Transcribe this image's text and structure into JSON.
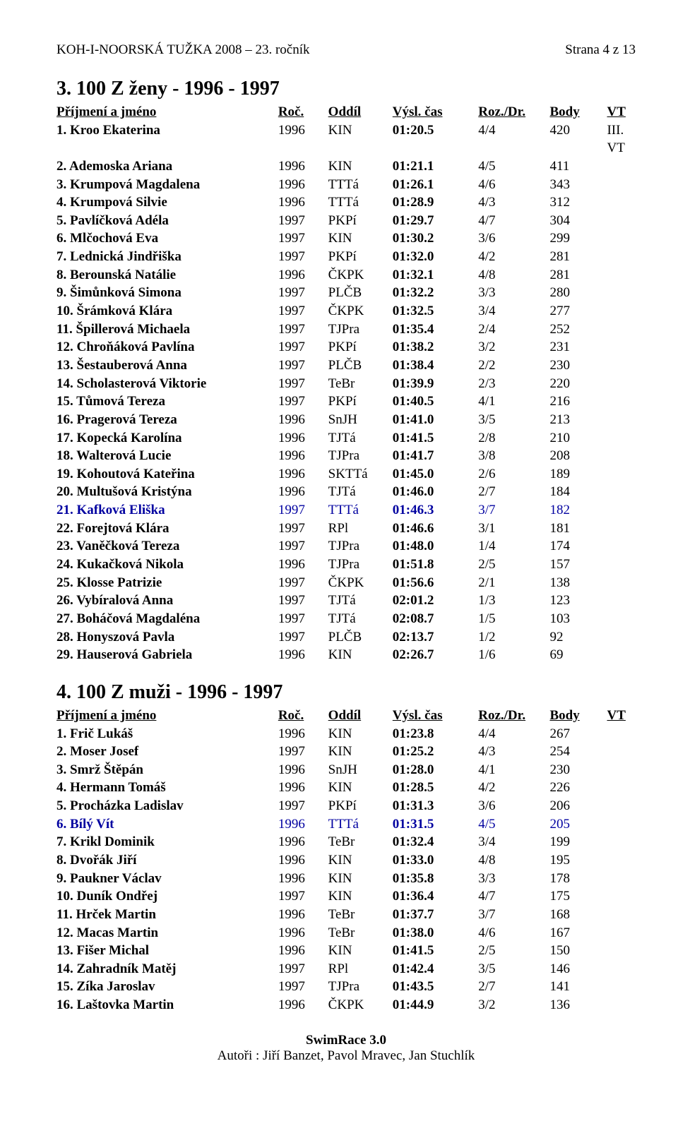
{
  "header": {
    "title_left": "KOH-I-NOORSKÁ TUŽKA 2008 – 23. ročník",
    "title_right": "Strana 4 z 13"
  },
  "s1": {
    "title": "3. 100 Z ženy - 1996 - 1997",
    "th": {
      "name": "Příjmení a jméno",
      "roc": "Roč.",
      "oddil": "Oddíl",
      "cas": "Výsl. čas",
      "roz": "Roz./Dr.",
      "body": "Body",
      "vt": "VT"
    },
    "rows": [
      {
        "hl": false,
        "name": "1. Kroo Ekaterina",
        "roc": "1996",
        "oddil": "KIN",
        "cas": "01:20.5",
        "roz": "4/4",
        "body": "420",
        "vt": "III. VT"
      },
      {
        "hl": false,
        "name": "2. Ademoska Ariana",
        "roc": "1996",
        "oddil": "KIN",
        "cas": "01:21.1",
        "roz": "4/5",
        "body": "411",
        "vt": ""
      },
      {
        "hl": false,
        "name": "3. Krumpová Magdalena",
        "roc": "1996",
        "oddil": "TTTá",
        "cas": "01:26.1",
        "roz": "4/6",
        "body": "343",
        "vt": ""
      },
      {
        "hl": false,
        "name": "4. Krumpová Silvie",
        "roc": "1996",
        "oddil": "TTTá",
        "cas": "01:28.9",
        "roz": "4/3",
        "body": "312",
        "vt": ""
      },
      {
        "hl": false,
        "name": "5. Pavlíčková Adéla",
        "roc": "1997",
        "oddil": "PKPí",
        "cas": "01:29.7",
        "roz": "4/7",
        "body": "304",
        "vt": ""
      },
      {
        "hl": false,
        "name": "6. Mlčochová Eva",
        "roc": "1997",
        "oddil": "KIN",
        "cas": "01:30.2",
        "roz": "3/6",
        "body": "299",
        "vt": ""
      },
      {
        "hl": false,
        "name": "7. Lednická Jindřiška",
        "roc": "1997",
        "oddil": "PKPí",
        "cas": "01:32.0",
        "roz": "4/2",
        "body": "281",
        "vt": ""
      },
      {
        "hl": false,
        "name": "8. Berounská Natálie",
        "roc": "1996",
        "oddil": "ČKPK",
        "cas": "01:32.1",
        "roz": "4/8",
        "body": "281",
        "vt": ""
      },
      {
        "hl": false,
        "name": "9. Šimůnková Simona",
        "roc": "1997",
        "oddil": "PLČB",
        "cas": "01:32.2",
        "roz": "3/3",
        "body": "280",
        "vt": ""
      },
      {
        "hl": false,
        "name": "10. Šrámková Klára",
        "roc": "1997",
        "oddil": "ČKPK",
        "cas": "01:32.5",
        "roz": "3/4",
        "body": "277",
        "vt": ""
      },
      {
        "hl": false,
        "name": "11. Špillerová Michaela",
        "roc": "1997",
        "oddil": "TJPra",
        "cas": "01:35.4",
        "roz": "2/4",
        "body": "252",
        "vt": ""
      },
      {
        "hl": false,
        "name": "12. Chroňáková Pavlína",
        "roc": "1997",
        "oddil": "PKPí",
        "cas": "01:38.2",
        "roz": "3/2",
        "body": "231",
        "vt": ""
      },
      {
        "hl": false,
        "name": "13. Šestauberová Anna",
        "roc": "1997",
        "oddil": "PLČB",
        "cas": "01:38.4",
        "roz": "2/2",
        "body": "230",
        "vt": ""
      },
      {
        "hl": false,
        "name": "14. Scholasterová Viktorie",
        "roc": "1997",
        "oddil": "TeBr",
        "cas": "01:39.9",
        "roz": "2/3",
        "body": "220",
        "vt": ""
      },
      {
        "hl": false,
        "name": "15. Tůmová Tereza",
        "roc": "1997",
        "oddil": "PKPí",
        "cas": "01:40.5",
        "roz": "4/1",
        "body": "216",
        "vt": ""
      },
      {
        "hl": false,
        "name": "16. Pragerová Tereza",
        "roc": "1996",
        "oddil": "SnJH",
        "cas": "01:41.0",
        "roz": "3/5",
        "body": "213",
        "vt": ""
      },
      {
        "hl": false,
        "name": "17. Kopecká Karolína",
        "roc": "1996",
        "oddil": "TJTá",
        "cas": "01:41.5",
        "roz": "2/8",
        "body": "210",
        "vt": ""
      },
      {
        "hl": false,
        "name": "18. Walterová Lucie",
        "roc": "1996",
        "oddil": "TJPra",
        "cas": "01:41.7",
        "roz": "3/8",
        "body": "208",
        "vt": ""
      },
      {
        "hl": false,
        "name": "19. Kohoutová Kateřina",
        "roc": "1996",
        "oddil": "SKTTá",
        "cas": "01:45.0",
        "roz": "2/6",
        "body": "189",
        "vt": ""
      },
      {
        "hl": false,
        "name": "20. Multušová Kristýna",
        "roc": "1996",
        "oddil": "TJTá",
        "cas": "01:46.0",
        "roz": "2/7",
        "body": "184",
        "vt": ""
      },
      {
        "hl": true,
        "name": "21. Kafková Eliška",
        "roc": "1997",
        "oddil": "TTTá",
        "cas": "01:46.3",
        "roz": "3/7",
        "body": "182",
        "vt": ""
      },
      {
        "hl": false,
        "name": "22. Forejtová Klára",
        "roc": "1997",
        "oddil": "RPl",
        "cas": "01:46.6",
        "roz": "3/1",
        "body": "181",
        "vt": ""
      },
      {
        "hl": false,
        "name": "23. Vaněčková Tereza",
        "roc": "1997",
        "oddil": "TJPra",
        "cas": "01:48.0",
        "roz": "1/4",
        "body": "174",
        "vt": ""
      },
      {
        "hl": false,
        "name": "24. Kukačková Nikola",
        "roc": "1996",
        "oddil": "TJPra",
        "cas": "01:51.8",
        "roz": "2/5",
        "body": "157",
        "vt": ""
      },
      {
        "hl": false,
        "name": "25. Klosse Patrizie",
        "roc": "1997",
        "oddil": "ČKPK",
        "cas": "01:56.6",
        "roz": "2/1",
        "body": "138",
        "vt": ""
      },
      {
        "hl": false,
        "name": "26. Vybíralová Anna",
        "roc": "1997",
        "oddil": "TJTá",
        "cas": "02:01.2",
        "roz": "1/3",
        "body": "123",
        "vt": ""
      },
      {
        "hl": false,
        "name": "27. Boháčová Magdaléna",
        "roc": "1997",
        "oddil": "TJTá",
        "cas": "02:08.7",
        "roz": "1/5",
        "body": "103",
        "vt": ""
      },
      {
        "hl": false,
        "name": "28. Honyszová Pavla",
        "roc": "1997",
        "oddil": "PLČB",
        "cas": "02:13.7",
        "roz": "1/2",
        "body": "92",
        "vt": ""
      },
      {
        "hl": false,
        "name": "29. Hauserová Gabriela",
        "roc": "1996",
        "oddil": "KIN",
        "cas": "02:26.7",
        "roz": "1/6",
        "body": "69",
        "vt": ""
      }
    ]
  },
  "s2": {
    "title": "4. 100 Z muži - 1996 - 1997",
    "th": {
      "name": "Příjmení a jméno",
      "roc": "Roč.",
      "oddil": "Oddíl",
      "cas": "Výsl. čas",
      "roz": "Roz./Dr.",
      "body": "Body",
      "vt": "VT"
    },
    "rows": [
      {
        "hl": false,
        "name": "1. Frič Lukáš",
        "roc": "1996",
        "oddil": "KIN",
        "cas": "01:23.8",
        "roz": "4/4",
        "body": "267",
        "vt": ""
      },
      {
        "hl": false,
        "name": "2. Moser Josef",
        "roc": "1997",
        "oddil": "KIN",
        "cas": "01:25.2",
        "roz": "4/3",
        "body": "254",
        "vt": ""
      },
      {
        "hl": false,
        "name": "3. Smrž Štěpán",
        "roc": "1996",
        "oddil": "SnJH",
        "cas": "01:28.0",
        "roz": "4/1",
        "body": "230",
        "vt": ""
      },
      {
        "hl": false,
        "name": "4. Hermann Tomáš",
        "roc": "1996",
        "oddil": "KIN",
        "cas": "01:28.5",
        "roz": "4/2",
        "body": "226",
        "vt": ""
      },
      {
        "hl": false,
        "name": "5. Procházka Ladislav",
        "roc": "1997",
        "oddil": "PKPí",
        "cas": "01:31.3",
        "roz": "3/6",
        "body": "206",
        "vt": ""
      },
      {
        "hl": true,
        "name": "6. Bílý Vít",
        "roc": "1996",
        "oddil": "TTTá",
        "cas": "01:31.5",
        "roz": "4/5",
        "body": "205",
        "vt": ""
      },
      {
        "hl": false,
        "name": "7. Krikl Dominik",
        "roc": "1996",
        "oddil": "TeBr",
        "cas": "01:32.4",
        "roz": "3/4",
        "body": "199",
        "vt": ""
      },
      {
        "hl": false,
        "name": "8. Dvořák Jiří",
        "roc": "1996",
        "oddil": "KIN",
        "cas": "01:33.0",
        "roz": "4/8",
        "body": "195",
        "vt": ""
      },
      {
        "hl": false,
        "name": "9. Paukner Václav",
        "roc": "1996",
        "oddil": "KIN",
        "cas": "01:35.8",
        "roz": "3/3",
        "body": "178",
        "vt": ""
      },
      {
        "hl": false,
        "name": "10. Duník Ondřej",
        "roc": "1997",
        "oddil": "KIN",
        "cas": "01:36.4",
        "roz": "4/7",
        "body": "175",
        "vt": ""
      },
      {
        "hl": false,
        "name": "11. Hrček Martin",
        "roc": "1996",
        "oddil": "TeBr",
        "cas": "01:37.7",
        "roz": "3/7",
        "body": "168",
        "vt": ""
      },
      {
        "hl": false,
        "name": "12. Macas Martin",
        "roc": "1996",
        "oddil": "TeBr",
        "cas": "01:38.0",
        "roz": "4/6",
        "body": "167",
        "vt": ""
      },
      {
        "hl": false,
        "name": "13. Fišer Michal",
        "roc": "1996",
        "oddil": "KIN",
        "cas": "01:41.5",
        "roz": "2/5",
        "body": "150",
        "vt": ""
      },
      {
        "hl": false,
        "name": "14. Zahradník Matěj",
        "roc": "1997",
        "oddil": "RPl",
        "cas": "01:42.4",
        "roz": "3/5",
        "body": "146",
        "vt": ""
      },
      {
        "hl": false,
        "name": "15. Zíka Jaroslav",
        "roc": "1997",
        "oddil": "TJPra",
        "cas": "01:43.5",
        "roz": "2/7",
        "body": "141",
        "vt": ""
      },
      {
        "hl": false,
        "name": "16. Laštovka Martin",
        "roc": "1996",
        "oddil": "ČKPK",
        "cas": "01:44.9",
        "roz": "3/2",
        "body": "136",
        "vt": ""
      }
    ]
  },
  "footer": {
    "line1": "SwimRace 3.0",
    "line2": "Autoři : Jiří Banzet, Pavol Mravec, Jan Stuchlík"
  },
  "colors": {
    "hl": "#0000a0",
    "text": "#000000",
    "bg": "#ffffff"
  }
}
